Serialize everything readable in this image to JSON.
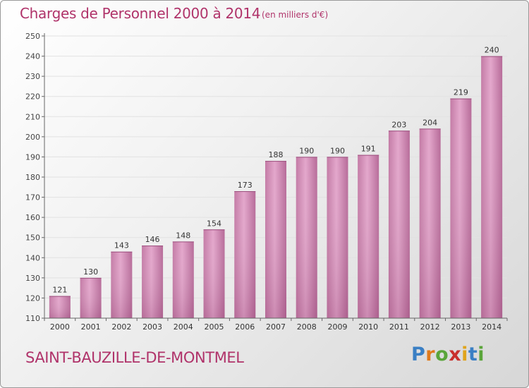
{
  "header": {
    "title": "Charges de Personnel 2000 à 2014",
    "subtitle": "(en milliers d'€)"
  },
  "footer": {
    "town": "SAINT-BAUZILLE-DE-MONTMEL",
    "logo_letters": [
      "P",
      "r",
      "o",
      "x",
      "i",
      "t",
      "i"
    ],
    "logo_colors": [
      "#3a7fc4",
      "#e07a1c",
      "#5aa53a",
      "#c9302c",
      "#e0a41c",
      "#3a7fc4",
      "#5aa53a"
    ]
  },
  "chart_data": {
    "type": "bar",
    "categories": [
      "2000",
      "2001",
      "2002",
      "2003",
      "2004",
      "2005",
      "2006",
      "2007",
      "2008",
      "2009",
      "2010",
      "2011",
      "2012",
      "2013",
      "2014"
    ],
    "values": [
      121,
      130,
      143,
      146,
      148,
      154,
      173,
      188,
      190,
      190,
      191,
      203,
      204,
      219,
      240
    ],
    "ylim": [
      110,
      250
    ],
    "yticks": [
      110,
      120,
      130,
      140,
      150,
      160,
      170,
      180,
      190,
      200,
      210,
      220,
      230,
      240,
      250
    ],
    "grid": true,
    "bar_color": "#d98fb9",
    "accent_color": "#b0336a"
  }
}
